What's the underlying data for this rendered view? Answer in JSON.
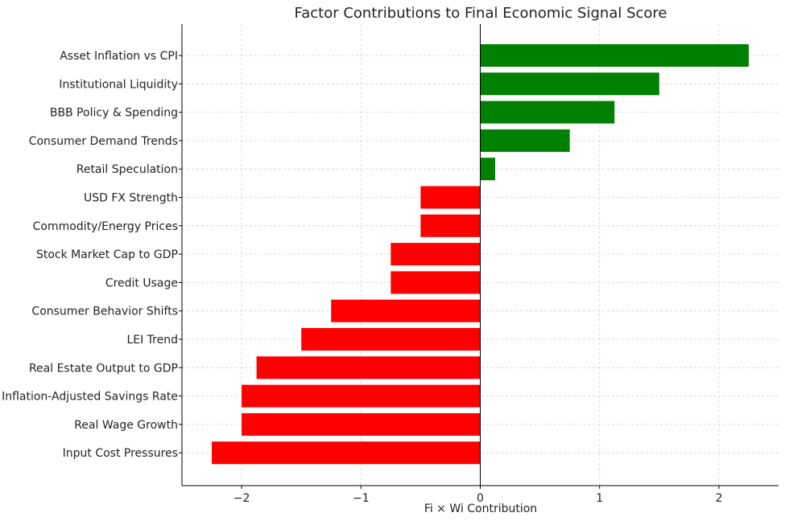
{
  "chart_data": {
    "type": "bar",
    "orientation": "horizontal",
    "title": "Factor Contributions to Final Economic Signal Score",
    "xlabel": "Fi × Wi Contribution",
    "ylabel": "",
    "xlim": [
      -2.5,
      2.5
    ],
    "xticks": [
      -2,
      -1,
      0,
      1,
      2
    ],
    "xtick_labels": [
      "−2",
      "−1",
      "0",
      "1",
      "2"
    ],
    "grid": true,
    "categories": [
      "Asset Inflation vs CPI",
      "Institutional Liquidity",
      "BBB Policy & Spending",
      "Consumer Demand Trends",
      "Retail Speculation",
      "USD FX Strength",
      "Commodity/Energy Prices",
      "Stock Market Cap to GDP",
      "Credit Usage",
      "Consumer Behavior Shifts",
      "LEI Trend",
      "Real Estate Output to GDP",
      "Inflation-Adjusted Savings Rate",
      "Real Wage Growth",
      "Input Cost Pressures"
    ],
    "values": [
      2.25,
      1.5,
      1.125,
      0.75,
      0.125,
      -0.5,
      -0.5,
      -0.75,
      -0.75,
      -1.25,
      -1.5,
      -1.875,
      -2.0,
      -2.0,
      -2.25
    ],
    "colors": {
      "positive": "#008000",
      "negative": "#ff0000"
    }
  }
}
